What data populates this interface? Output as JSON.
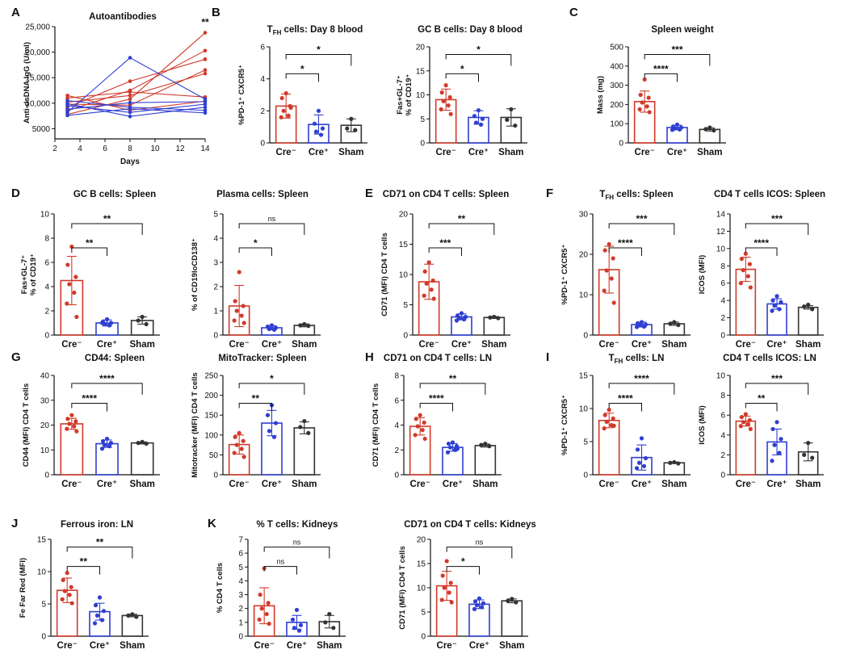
{
  "colors": {
    "cre_neg": "#d13a2a",
    "cre_pos": "#2f3fd1",
    "sham": "#333333",
    "axis": "#111111"
  },
  "chart_data": [
    {
      "id": "A",
      "panel_label": "A",
      "type": "line",
      "title": "Autoantibodies",
      "xlabel": "Days",
      "ylabel": "Anti-dsDNA IgG (U/ml)",
      "xlim": [
        2,
        14
      ],
      "ylim": [
        3000,
        25000
      ],
      "xticks": [
        2,
        4,
        6,
        8,
        10,
        12,
        14
      ],
      "yticks": [
        5000,
        10000,
        15000,
        20000,
        25000
      ],
      "ytick_labels": [
        "5000",
        "10,000",
        "15,000",
        "20,000",
        "25,000"
      ],
      "annotation": {
        "text": "**",
        "x": 14,
        "y": 25200
      },
      "x": [
        3,
        8,
        14
      ],
      "series": [
        {
          "group": "Cre-",
          "values": [
            7800,
            10800,
            23800
          ]
        },
        {
          "group": "Cre-",
          "values": [
            8500,
            12500,
            20300
          ]
        },
        {
          "group": "Cre-",
          "values": [
            9200,
            14300,
            18600
          ]
        },
        {
          "group": "Cre-",
          "values": [
            9800,
            9600,
            16500
          ]
        },
        {
          "group": "Cre-",
          "values": [
            10200,
            11500,
            15800
          ]
        },
        {
          "group": "Cre-",
          "values": [
            11000,
            12200,
            11200
          ]
        },
        {
          "group": "Cre-",
          "values": [
            11500,
            8600,
            10400
          ]
        },
        {
          "group": "Cre+",
          "values": [
            8200,
            18900,
            10800
          ]
        },
        {
          "group": "Cre+",
          "values": [
            8800,
            10100,
            10300
          ]
        },
        {
          "group": "Cre+",
          "values": [
            9500,
            8200,
            9800
          ]
        },
        {
          "group": "Cre+",
          "values": [
            9900,
            7400,
            9200
          ]
        },
        {
          "group": "Cre+",
          "values": [
            10500,
            9200,
            8600
          ]
        },
        {
          "group": "Cre+",
          "values": [
            7600,
            8900,
            8100
          ]
        }
      ]
    },
    {
      "id": "B1",
      "panel_label": "B",
      "type": "bar",
      "title": "TFH cells: Day 8 blood",
      "title_main": "T",
      "title_sub": "FH",
      "title_rest": " cells: Day 8 blood",
      "ylabel": "%PD-1⁺ CXCR5⁺",
      "ylim": [
        0,
        6
      ],
      "yticks": [
        0,
        2,
        4,
        6
      ],
      "categories": [
        "Cre⁻",
        "Cre⁺",
        "Sham"
      ],
      "values": [
        2.3,
        1.15,
        1.1
      ],
      "errors": [
        0.75,
        0.6,
        0.4
      ],
      "points": [
        [
          3.1,
          2.8,
          2.3,
          2.0,
          1.7,
          1.6,
          2.2
        ],
        [
          2.0,
          1.2,
          0.9,
          0.7,
          0.5
        ],
        [
          1.5,
          0.9,
          0.8
        ]
      ],
      "comparisons": [
        {
          "from": 0,
          "to": 1,
          "label": "*"
        },
        {
          "from": 0,
          "to": 2,
          "label": "*"
        }
      ]
    },
    {
      "id": "B2",
      "panel_label": "",
      "type": "bar",
      "title": "GC B cells: Day 8 blood",
      "ylabel": "Fas+GL-7⁺ % of CD19⁺",
      "ylabel_lines": [
        "Fas+GL-7⁺",
        "% of CD19⁺"
      ],
      "ylim": [
        0,
        20
      ],
      "yticks": [
        0,
        5,
        10,
        15,
        20
      ],
      "categories": [
        "Cre⁻",
        "Cre⁺",
        "Sham"
      ],
      "values": [
        9.0,
        5.3,
        5.3
      ],
      "errors": [
        2.2,
        1.4,
        1.8
      ],
      "points": [
        [
          12.0,
          10.5,
          9.5,
          8.7,
          7.8,
          7.0,
          6.0
        ],
        [
          6.8,
          5.6,
          5.0,
          4.2,
          3.8
        ],
        [
          7.0,
          4.8,
          3.6
        ]
      ],
      "comparisons": [
        {
          "from": 0,
          "to": 1,
          "label": "*"
        },
        {
          "from": 0,
          "to": 2,
          "label": "*"
        }
      ]
    },
    {
      "id": "C",
      "panel_label": "C",
      "type": "bar",
      "title": "Spleen weight",
      "ylabel": "Mass (mg)",
      "ylim": [
        0,
        500
      ],
      "yticks": [
        0,
        100,
        200,
        300,
        400,
        500
      ],
      "categories": [
        "Cre⁻",
        "Cre⁺",
        "Sham"
      ],
      "values": [
        215,
        80,
        70
      ],
      "errors": [
        55,
        12,
        8
      ],
      "points": [
        [
          330,
          250,
          235,
          210,
          190,
          175,
          160
        ],
        [
          95,
          85,
          80,
          75,
          70,
          68
        ],
        [
          80,
          72,
          65
        ]
      ],
      "comparisons": [
        {
          "from": 0,
          "to": 1,
          "label": "****"
        },
        {
          "from": 0,
          "to": 2,
          "label": "***"
        }
      ]
    },
    {
      "id": "D1",
      "panel_label": "D",
      "type": "bar",
      "title": "GC B cells: Spleen",
      "ylabel": "Fas+GL-7⁺ % of CD19⁺",
      "ylabel_lines": [
        "Fas+GL-7⁺",
        "% of CD19⁺"
      ],
      "ylim": [
        0,
        10
      ],
      "yticks": [
        0,
        2,
        4,
        6,
        8,
        10
      ],
      "categories": [
        "Cre⁻",
        "Cre⁺",
        "Sham"
      ],
      "values": [
        4.5,
        1.0,
        1.2
      ],
      "errors": [
        2.0,
        0.25,
        0.3
      ],
      "points": [
        [
          7.3,
          5.8,
          4.8,
          4.2,
          3.5,
          2.6,
          1.5
        ],
        [
          1.3,
          1.1,
          1.0,
          0.9,
          0.8,
          1.0
        ],
        [
          1.5,
          1.2,
          0.9
        ]
      ],
      "comparisons": [
        {
          "from": 0,
          "to": 1,
          "label": "**"
        },
        {
          "from": 0,
          "to": 2,
          "label": "**"
        }
      ]
    },
    {
      "id": "D2",
      "panel_label": "",
      "type": "bar",
      "title": "Plasma cells: Spleen",
      "ylabel": "% of CD19loCD138⁺",
      "ylim": [
        0,
        5
      ],
      "yticks": [
        0,
        1,
        2,
        3,
        4,
        5
      ],
      "categories": [
        "Cre⁻",
        "Cre⁺",
        "Sham"
      ],
      "values": [
        1.2,
        0.3,
        0.4
      ],
      "errors": [
        0.85,
        0.08,
        0.06
      ],
      "points": [
        [
          2.6,
          1.4,
          1.2,
          1.0,
          0.8,
          0.6,
          0.5
        ],
        [
          0.4,
          0.35,
          0.3,
          0.25,
          0.22
        ],
        [
          0.45,
          0.4,
          0.38
        ]
      ],
      "comparisons": [
        {
          "from": 0,
          "to": 1,
          "label": "*"
        },
        {
          "from": 0,
          "to": 2,
          "label": "ns"
        }
      ]
    },
    {
      "id": "E",
      "panel_label": "E",
      "type": "bar",
      "title": "CD71 on CD4 T cells: Spleen",
      "ylabel": "CD71 (MFI) CD4 T cells",
      "ylim": [
        0,
        20
      ],
      "yticks": [
        0,
        5,
        10,
        15,
        20
      ],
      "categories": [
        "Cre⁻",
        "Cre⁺",
        "Sham"
      ],
      "values": [
        8.8,
        3.0,
        2.9
      ],
      "errors": [
        2.9,
        0.5,
        0.15
      ],
      "points": [
        [
          12.0,
          10.5,
          9.0,
          8.5,
          7.5,
          6.5,
          6.0
        ],
        [
          3.6,
          3.2,
          3.0,
          2.8,
          2.6,
          2.4
        ],
        [
          3.0,
          2.9,
          2.8
        ]
      ],
      "comparisons": [
        {
          "from": 0,
          "to": 1,
          "label": "***"
        },
        {
          "from": 0,
          "to": 2,
          "label": "**"
        }
      ]
    },
    {
      "id": "F1",
      "panel_label": "F",
      "type": "bar",
      "title": "TFH cells: Spleen",
      "title_main": "T",
      "title_sub": "FH",
      "title_rest": " cells: Spleen",
      "ylabel": "%PD-1⁺ CXCR5⁺",
      "ylim": [
        0,
        30
      ],
      "yticks": [
        0,
        10,
        20,
        30
      ],
      "categories": [
        "Cre⁻",
        "Cre⁺",
        "Sham"
      ],
      "values": [
        16.2,
        2.6,
        2.8
      ],
      "errors": [
        5.8,
        0.6,
        0.4
      ],
      "points": [
        [
          22.5,
          21.0,
          19.0,
          16.0,
          14.0,
          11.0,
          8.0
        ],
        [
          3.2,
          2.9,
          2.6,
          2.4,
          2.1,
          2.0
        ],
        [
          3.2,
          2.8,
          2.5
        ]
      ],
      "comparisons": [
        {
          "from": 0,
          "to": 1,
          "label": "****"
        },
        {
          "from": 0,
          "to": 2,
          "label": "***"
        }
      ]
    },
    {
      "id": "F2",
      "panel_label": "",
      "type": "bar",
      "title": "CD4 T cells ICOS: Spleen",
      "ylabel": "ICOS (MFI)",
      "ylim": [
        0,
        14
      ],
      "yticks": [
        0,
        2,
        4,
        6,
        8,
        10,
        12,
        14
      ],
      "categories": [
        "Cre⁻",
        "Cre⁺",
        "Sham"
      ],
      "values": [
        7.6,
        3.6,
        3.2
      ],
      "errors": [
        1.4,
        0.6,
        0.2
      ],
      "points": [
        [
          9.4,
          8.8,
          8.2,
          7.5,
          6.8,
          6.0,
          5.5
        ],
        [
          4.5,
          4.0,
          3.8,
          3.4,
          3.0,
          2.8
        ],
        [
          3.5,
          3.3,
          3.0
        ]
      ],
      "comparisons": [
        {
          "from": 0,
          "to": 1,
          "label": "****"
        },
        {
          "from": 0,
          "to": 2,
          "label": "***"
        }
      ]
    },
    {
      "id": "G1",
      "panel_label": "G",
      "type": "bar",
      "title": "CD44: Spleen",
      "ylabel": "CD44 (MFI) CD4 T cells",
      "ylim": [
        0,
        40
      ],
      "yticks": [
        0,
        10,
        20,
        30,
        40
      ],
      "categories": [
        "Cre⁻",
        "Cre⁺",
        "Sham"
      ],
      "values": [
        20.5,
        12.5,
        12.8
      ],
      "errors": [
        2.2,
        1.5,
        0.4
      ],
      "points": [
        [
          24.0,
          22.5,
          21.5,
          20.5,
          19.5,
          18.5,
          17.5
        ],
        [
          14.5,
          13.5,
          12.8,
          12.0,
          11.5,
          10.5
        ],
        [
          13.2,
          12.8,
          12.5
        ]
      ],
      "comparisons": [
        {
          "from": 0,
          "to": 1,
          "label": "****"
        },
        {
          "from": 0,
          "to": 2,
          "label": "****"
        }
      ]
    },
    {
      "id": "G2",
      "panel_label": "",
      "type": "bar",
      "title": "MitoTracker: Spleen",
      "ylabel": "Mitotracker (MFI) CD4 T cells",
      "ylim": [
        0,
        250
      ],
      "yticks": [
        0,
        50,
        100,
        150,
        200,
        250
      ],
      "categories": [
        "Cre⁻",
        "Cre⁺",
        "Sham"
      ],
      "values": [
        76,
        130,
        118
      ],
      "errors": [
        24,
        32,
        15
      ],
      "points": [
        [
          105,
          95,
          85,
          75,
          65,
          55,
          45
        ],
        [
          175,
          150,
          130,
          110,
          95
        ],
        [
          135,
          120,
          105
        ]
      ],
      "comparisons": [
        {
          "from": 0,
          "to": 1,
          "label": "**"
        },
        {
          "from": 0,
          "to": 2,
          "label": "*"
        }
      ]
    },
    {
      "id": "H",
      "panel_label": "H",
      "type": "bar",
      "title": "CD71 on CD4 T cells: LN",
      "ylabel": "CD71 (MFI) CD4 T cells",
      "ylim": [
        0,
        8
      ],
      "yticks": [
        0,
        2,
        4,
        6,
        8
      ],
      "categories": [
        "Cre⁻",
        "Cre⁺",
        "Sham"
      ],
      "values": [
        3.9,
        2.2,
        2.35
      ],
      "errors": [
        0.7,
        0.3,
        0.12
      ],
      "points": [
        [
          4.8,
          4.5,
          4.2,
          3.9,
          3.6,
          3.2,
          2.9
        ],
        [
          2.6,
          2.5,
          2.3,
          2.2,
          2.0,
          1.8,
          2.1
        ],
        [
          2.5,
          2.4,
          2.3
        ]
      ],
      "comparisons": [
        {
          "from": 0,
          "to": 1,
          "label": "****"
        },
        {
          "from": 0,
          "to": 2,
          "label": "**"
        }
      ]
    },
    {
      "id": "I1",
      "panel_label": "I",
      "type": "bar",
      "title": "TFH cells: LN",
      "title_main": "T",
      "title_sub": "FH",
      "title_rest": " cells: LN",
      "ylabel": "%PD-1⁺ CXCR5⁺",
      "ylim": [
        0,
        15
      ],
      "yticks": [
        0,
        5,
        10,
        15
      ],
      "categories": [
        "Cre⁻",
        "Cre⁺",
        "Sham"
      ],
      "values": [
        8.2,
        2.6,
        1.8
      ],
      "errors": [
        1.1,
        1.9,
        0.1
      ],
      "points": [
        [
          9.8,
          9.0,
          8.5,
          8.0,
          7.5,
          7.0,
          7.4
        ],
        [
          5.5,
          3.8,
          2.5,
          1.8,
          1.3,
          1.0
        ],
        [
          1.9,
          1.8,
          1.7
        ]
      ],
      "comparisons": [
        {
          "from": 0,
          "to": 1,
          "label": "****"
        },
        {
          "from": 0,
          "to": 2,
          "label": "****"
        }
      ]
    },
    {
      "id": "I2",
      "panel_label": "",
      "type": "bar",
      "title": "CD4 T cells ICOS: LN",
      "ylabel": "ICOS (MFI)",
      "ylim": [
        0,
        10
      ],
      "yticks": [
        0,
        2,
        4,
        6,
        8,
        10
      ],
      "categories": [
        "Cre⁻",
        "Cre⁺",
        "Sham"
      ],
      "values": [
        5.4,
        3.3,
        2.3
      ],
      "errors": [
        0.5,
        1.3,
        0.9
      ],
      "points": [
        [
          6.1,
          5.8,
          5.5,
          5.3,
          5.1,
          4.9,
          4.6
        ],
        [
          5.3,
          4.6,
          3.6,
          3.0,
          2.2,
          1.4
        ],
        [
          3.2,
          2.0,
          1.7
        ]
      ],
      "comparisons": [
        {
          "from": 0,
          "to": 1,
          "label": "**"
        },
        {
          "from": 0,
          "to": 2,
          "label": "***"
        }
      ]
    },
    {
      "id": "J",
      "panel_label": "J",
      "type": "bar",
      "title": "Ferrous iron: LN",
      "ylabel": "Fe Far Red (MFI)",
      "ylim": [
        0,
        15
      ],
      "yticks": [
        0,
        5,
        10,
        15
      ],
      "categories": [
        "Cre⁻",
        "Cre⁺",
        "Sham"
      ],
      "values": [
        7.1,
        3.8,
        3.2
      ],
      "errors": [
        1.9,
        1.3,
        0.2
      ],
      "points": [
        [
          9.8,
          8.7,
          7.6,
          7.0,
          6.4,
          5.7,
          5.1
        ],
        [
          6.0,
          4.8,
          3.9,
          3.2,
          2.5,
          2.0
        ],
        [
          3.4,
          3.2,
          3.0
        ]
      ],
      "comparisons": [
        {
          "from": 0,
          "to": 1,
          "label": "**"
        },
        {
          "from": 0,
          "to": 2,
          "label": "**"
        }
      ]
    },
    {
      "id": "K1",
      "panel_label": "K",
      "type": "bar",
      "title": "% T cells: Kidneys",
      "ylabel": "% CD4 T cells",
      "ylim": [
        0,
        7
      ],
      "yticks": [
        0,
        1,
        2,
        3,
        4,
        5,
        6,
        7
      ],
      "categories": [
        "Cre⁻",
        "Cre⁺",
        "Sham"
      ],
      "values": [
        2.2,
        1.0,
        1.05
      ],
      "errors": [
        1.3,
        0.5,
        0.45
      ],
      "points": [
        [
          4.9,
          3.0,
          2.4,
          2.0,
          1.6,
          1.2,
          0.9
        ],
        [
          1.9,
          1.2,
          0.8,
          0.6,
          0.4
        ],
        [
          1.6,
          1.0,
          0.6
        ]
      ],
      "comparisons": [
        {
          "from": 0,
          "to": 1,
          "label": "ns"
        },
        {
          "from": 0,
          "to": 2,
          "label": "ns"
        }
      ]
    },
    {
      "id": "K2",
      "panel_label": "",
      "type": "bar",
      "title": "CD71 on CD4 T cells: Kidneys",
      "ylabel": "CD71 (MFI) CD4 T cells",
      "ylim": [
        0,
        20
      ],
      "yticks": [
        0,
        5,
        10,
        15,
        20
      ],
      "categories": [
        "Cre⁻",
        "Cre⁺",
        "Sham"
      ],
      "values": [
        10.4,
        6.6,
        7.3
      ],
      "errors": [
        3.0,
        0.9,
        0.4
      ],
      "points": [
        [
          15.5,
          12.5,
          11.0,
          10.0,
          9.0,
          7.5,
          7.0
        ],
        [
          7.8,
          7.2,
          6.8,
          6.4,
          6.0,
          5.6
        ],
        [
          7.7,
          7.3,
          7.0
        ]
      ],
      "comparisons": [
        {
          "from": 0,
          "to": 1,
          "label": "*"
        },
        {
          "from": 0,
          "to": 2,
          "label": "ns"
        }
      ]
    }
  ]
}
